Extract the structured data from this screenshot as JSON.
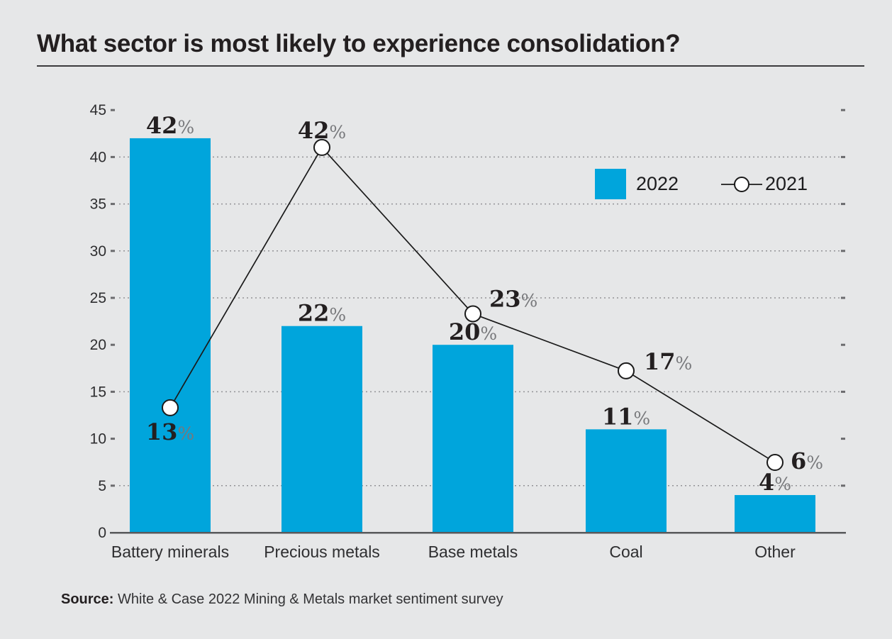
{
  "chart_data": {
    "type": "combo",
    "title": "What sector is most likely to experience consolidation?",
    "categories": [
      "Battery minerals",
      "Precious metals",
      "Base metals",
      "Coal",
      "Other"
    ],
    "series": [
      {
        "name": "2022",
        "type": "bar",
        "color": "#00a5dc",
        "values": [
          42,
          22,
          20,
          11,
          4
        ]
      },
      {
        "name": "2021",
        "type": "line",
        "color": "#1a1a1a",
        "marker": "open-circle",
        "values": [
          13,
          42,
          23,
          17,
          6
        ],
        "label_positions": [
          "below",
          "above",
          "upper-right",
          "right",
          "right"
        ]
      }
    ],
    "value_suffix": "%",
    "ylim": [
      0,
      45
    ],
    "yticks": [
      0,
      5,
      10,
      15,
      20,
      25,
      30,
      35,
      40,
      45
    ],
    "gridlines_at": [
      5,
      15,
      25,
      30,
      35,
      40
    ],
    "grid_style": "dotted",
    "legend_position": "top-right",
    "colors": {
      "background": "#e6e7e8",
      "bar": "#00a5dc",
      "line": "#1a1a1a",
      "value_label": "#231f20",
      "percent_sign": "#77787b",
      "axis": "#58595b",
      "gridline": "#939396",
      "axis_text": "#2e2e30"
    }
  },
  "legend": {
    "items": [
      {
        "label": "2022"
      },
      {
        "label": "2021"
      }
    ]
  },
  "source": {
    "label": "Source:",
    "text": "White & Case 2022 Mining & Metals market sentiment survey"
  }
}
